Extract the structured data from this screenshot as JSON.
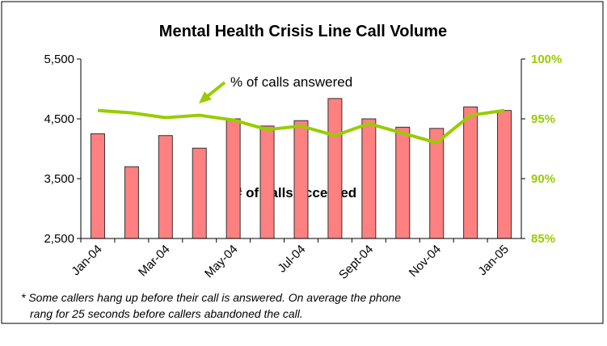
{
  "chart_data": {
    "type": "bar",
    "title": "Mental Health Crisis Line Call Volume",
    "categories": [
      "Jan-04",
      null,
      "Mar-04",
      null,
      "May-04",
      null,
      "Jul-04",
      null,
      "Sept-04",
      null,
      "Nov-04",
      null,
      "Jan-05"
    ],
    "series": [
      {
        "name": "# of calls accepted",
        "color": "#ff8080",
        "values": [
          4250,
          3700,
          4220,
          4010,
          4500,
          4380,
          4470,
          4840,
          4500,
          4360,
          4340,
          4700,
          4640
        ]
      },
      {
        "name": "% of calls answered",
        "color": "#99cc00",
        "axis": "y2",
        "type": "line",
        "values": [
          95.7,
          95.5,
          95.1,
          95.3,
          94.9,
          94.1,
          94.4,
          93.6,
          94.6,
          93.8,
          93.0,
          95.3,
          95.7
        ]
      }
    ],
    "ylim": [
      2500,
      5500
    ],
    "yticks": [
      {
        "value": 2500,
        "label": "2,500"
      },
      {
        "value": 3500,
        "label": "3,500"
      },
      {
        "value": 4500,
        "label": "4,500"
      },
      {
        "value": 5500,
        "label": "5,500"
      }
    ],
    "y2lim": [
      85,
      100
    ],
    "y2ticks": [
      {
        "value": 85,
        "label": "85%"
      },
      {
        "value": 90,
        "label": "90%"
      },
      {
        "value": 95,
        "label": "95%"
      },
      {
        "value": 100,
        "label": "100%"
      }
    ],
    "footnote": [
      "* Some callers hang up before their call is answered. On average the phone",
      "rang for 25 seconds before callers abandoned the call."
    ]
  }
}
